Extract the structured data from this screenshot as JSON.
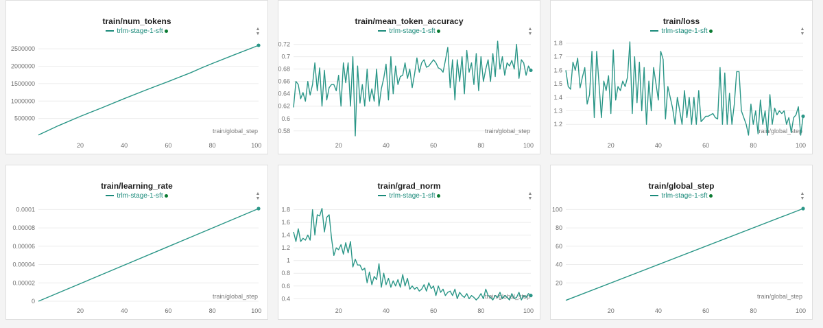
{
  "colors": {
    "line": "#2a9687",
    "legend_dot": "#0b7a32",
    "grid": "#ececec"
  },
  "charts": [
    {
      "id": "num-tokens",
      "title": "train/num_tokens",
      "legend": "trlm-stage-1-sft",
      "xlabel": "train/global_step",
      "x_ticks": [
        "20",
        "40",
        "60",
        "80",
        "100"
      ],
      "y_ticks": [
        "500000",
        "1000000",
        "1500000",
        "2000000",
        "2500000"
      ]
    },
    {
      "id": "mean-token-accuracy",
      "title": "train/mean_token_accuracy",
      "legend": "trlm-stage-1-sft",
      "xlabel": "train/global_step",
      "x_ticks": [
        "20",
        "40",
        "60",
        "80",
        "100"
      ],
      "y_ticks": [
        "0.58",
        "0.6",
        "0.62",
        "0.64",
        "0.66",
        "0.68",
        "0.7",
        "0.72"
      ]
    },
    {
      "id": "loss",
      "title": "train/loss",
      "legend": "trlm-stage-1-sft",
      "xlabel": "train/global_step",
      "x_ticks": [
        "20",
        "40",
        "60",
        "80",
        "100"
      ],
      "y_ticks": [
        "1.2",
        "1.3",
        "1.4",
        "1.5",
        "1.6",
        "1.7",
        "1.8"
      ]
    },
    {
      "id": "learning-rate",
      "title": "train/learning_rate",
      "legend": "trlm-stage-1-sft",
      "xlabel": "train/global_step",
      "x_ticks": [
        "20",
        "40",
        "60",
        "80",
        "100"
      ],
      "y_ticks": [
        "0",
        "0.00002",
        "0.00004",
        "0.00006",
        "0.00008",
        "0.0001"
      ]
    },
    {
      "id": "grad-norm",
      "title": "train/grad_norm",
      "legend": "trlm-stage-1-sft",
      "xlabel": "train/global_step",
      "x_ticks": [
        "20",
        "40",
        "60",
        "80",
        "100"
      ],
      "y_ticks": [
        "0.4",
        "0.6",
        "0.8",
        "1",
        "1.2",
        "1.4",
        "1.6",
        "1.8"
      ]
    },
    {
      "id": "global-step",
      "title": "train/global_step",
      "legend": "trlm-stage-1-sft",
      "xlabel": "train/global_step",
      "x_ticks": [
        "20",
        "40",
        "60",
        "80",
        "100"
      ],
      "y_ticks": [
        "20",
        "40",
        "60",
        "80",
        "100"
      ]
    }
  ],
  "chart_data": [
    {
      "type": "line",
      "title": "train/num_tokens",
      "xlabel": "train/global_step",
      "ylabel": "",
      "xlim": [
        1,
        101
      ],
      "ylim": [
        0,
        2700000
      ],
      "series": [
        {
          "name": "trlm-stage-1-sft",
          "x": [
            1,
            10,
            20,
            30,
            40,
            50,
            55,
            60,
            70,
            75,
            80,
            90,
            101
          ],
          "y": [
            25000,
            290000,
            560000,
            810000,
            1070000,
            1320000,
            1440000,
            1560000,
            1810000,
            1950000,
            2080000,
            2330000,
            2600000
          ]
        }
      ]
    },
    {
      "type": "line",
      "title": "train/mean_token_accuracy",
      "xlabel": "train/global_step",
      "ylabel": "",
      "xlim": [
        1,
        101
      ],
      "ylim": [
        0.572,
        0.724
      ],
      "series": [
        {
          "name": "trlm-stage-1-sft",
          "x": [
            1,
            2,
            3,
            4,
            5,
            6,
            7,
            8,
            9,
            10,
            11,
            12,
            13,
            14,
            15,
            16,
            17,
            18,
            19,
            20,
            21,
            22,
            23,
            24,
            25,
            26,
            27,
            28,
            29,
            30,
            31,
            32,
            33,
            34,
            35,
            36,
            37,
            38,
            39,
            40,
            41,
            42,
            43,
            44,
            45,
            46,
            47,
            48,
            49,
            50,
            51,
            52,
            53,
            54,
            55,
            56,
            57,
            58,
            59,
            60,
            61,
            62,
            63,
            64,
            65,
            66,
            67,
            68,
            69,
            70,
            71,
            72,
            73,
            74,
            75,
            76,
            77,
            78,
            79,
            80,
            81,
            82,
            83,
            84,
            85,
            86,
            87,
            88,
            89,
            90,
            91,
            92,
            93,
            94,
            95,
            96,
            97,
            98,
            99,
            100,
            101
          ],
          "y": [
            0.618,
            0.66,
            0.655,
            0.632,
            0.642,
            0.628,
            0.66,
            0.638,
            0.655,
            0.69,
            0.645,
            0.682,
            0.62,
            0.678,
            0.63,
            0.65,
            0.655,
            0.655,
            0.645,
            0.67,
            0.62,
            0.69,
            0.658,
            0.69,
            0.62,
            0.7,
            0.572,
            0.685,
            0.625,
            0.655,
            0.62,
            0.68,
            0.628,
            0.648,
            0.628,
            0.68,
            0.62,
            0.648,
            0.665,
            0.688,
            0.63,
            0.7,
            0.64,
            0.685,
            0.655,
            0.668,
            0.67,
            0.69,
            0.665,
            0.68,
            0.65,
            0.672,
            0.698,
            0.675,
            0.69,
            0.695,
            0.683,
            0.685,
            0.69,
            0.695,
            0.69,
            0.682,
            0.68,
            0.675,
            0.694,
            0.715,
            0.65,
            0.695,
            0.63,
            0.695,
            0.66,
            0.7,
            0.64,
            0.71,
            0.675,
            0.69,
            0.655,
            0.705,
            0.645,
            0.7,
            0.66,
            0.68,
            0.695,
            0.66,
            0.705,
            0.668,
            0.725,
            0.68,
            0.7,
            0.67,
            0.69,
            0.685,
            0.694,
            0.68,
            0.72,
            0.665,
            0.695,
            0.69,
            0.67,
            0.685,
            0.678
          ]
        }
      ]
    },
    {
      "type": "line",
      "title": "train/loss",
      "xlabel": "train/global_step",
      "ylabel": "",
      "xlim": [
        1,
        101
      ],
      "ylim": [
        1.115,
        1.81
      ],
      "series": [
        {
          "name": "trlm-stage-1-sft",
          "x": [
            1,
            2,
            3,
            4,
            5,
            6,
            7,
            8,
            9,
            10,
            11,
            12,
            13,
            14,
            15,
            16,
            17,
            18,
            19,
            20,
            21,
            22,
            23,
            24,
            25,
            26,
            27,
            28,
            29,
            30,
            31,
            32,
            33,
            34,
            35,
            36,
            37,
            38,
            39,
            40,
            41,
            42,
            43,
            44,
            45,
            46,
            47,
            48,
            49,
            50,
            51,
            52,
            53,
            54,
            55,
            56,
            57,
            58,
            59,
            60,
            61,
            62,
            63,
            64,
            65,
            66,
            67,
            68,
            69,
            70,
            71,
            72,
            73,
            74,
            75,
            76,
            77,
            78,
            79,
            80,
            81,
            82,
            83,
            84,
            85,
            86,
            87,
            88,
            89,
            90,
            91,
            92,
            93,
            94,
            95,
            96,
            97,
            98,
            99,
            100,
            101
          ],
          "y": [
            1.6,
            1.48,
            1.46,
            1.66,
            1.6,
            1.69,
            1.47,
            1.55,
            1.62,
            1.35,
            1.42,
            1.74,
            1.25,
            1.74,
            1.5,
            1.25,
            1.52,
            1.45,
            1.56,
            1.28,
            1.75,
            1.38,
            1.48,
            1.45,
            1.52,
            1.48,
            1.55,
            1.81,
            1.28,
            1.7,
            1.36,
            1.66,
            1.3,
            1.62,
            1.2,
            1.52,
            1.3,
            1.62,
            1.5,
            1.38,
            1.74,
            1.68,
            1.24,
            1.48,
            1.4,
            1.32,
            1.2,
            1.4,
            1.3,
            1.2,
            1.45,
            1.25,
            1.4,
            1.2,
            1.4,
            1.2,
            1.45,
            1.22,
            1.24,
            1.26,
            1.26,
            1.27,
            1.28,
            1.25,
            1.24,
            1.62,
            1.2,
            1.58,
            1.2,
            1.43,
            1.2,
            1.35,
            1.59,
            1.59,
            1.3,
            1.25,
            1.2,
            1.12,
            1.35,
            1.2,
            1.3,
            1.13,
            1.38,
            1.2,
            1.3,
            1.12,
            1.42,
            1.2,
            1.32,
            1.27,
            1.3,
            1.28,
            1.3,
            1.2,
            1.25,
            1.14,
            1.25,
            1.27,
            1.33,
            1.12,
            1.26
          ]
        }
      ]
    },
    {
      "type": "line",
      "title": "train/learning_rate",
      "xlabel": "train/global_step",
      "ylabel": "",
      "xlim": [
        1,
        101
      ],
      "ylim": [
        0,
        0.000104
      ],
      "series": [
        {
          "name": "trlm-stage-1-sft",
          "x": [
            1,
            101
          ],
          "y": [
            0,
            0.000101
          ]
        }
      ]
    },
    {
      "type": "line",
      "title": "train/grad_norm",
      "xlabel": "train/global_step",
      "ylabel": "",
      "xlim": [
        1,
        101
      ],
      "ylim": [
        0.36,
        1.86
      ],
      "series": [
        {
          "name": "trlm-stage-1-sft",
          "x": [
            1,
            2,
            3,
            4,
            5,
            6,
            7,
            8,
            9,
            10,
            11,
            12,
            13,
            14,
            15,
            16,
            17,
            18,
            19,
            20,
            21,
            22,
            23,
            24,
            25,
            26,
            27,
            28,
            29,
            30,
            31,
            32,
            33,
            34,
            35,
            36,
            37,
            38,
            39,
            40,
            41,
            42,
            43,
            44,
            45,
            46,
            47,
            48,
            49,
            50,
            51,
            52,
            53,
            54,
            55,
            56,
            57,
            58,
            59,
            60,
            61,
            62,
            63,
            64,
            65,
            66,
            67,
            68,
            69,
            70,
            71,
            72,
            73,
            74,
            75,
            76,
            77,
            78,
            79,
            80,
            81,
            82,
            83,
            84,
            85,
            86,
            87,
            88,
            89,
            90,
            91,
            92,
            93,
            94,
            95,
            96,
            97,
            98,
            99,
            100,
            101
          ],
          "y": [
            1.45,
            1.3,
            1.5,
            1.3,
            1.35,
            1.32,
            1.4,
            1.32,
            1.8,
            1.4,
            1.72,
            1.7,
            1.82,
            1.45,
            1.68,
            1.72,
            1.35,
            1.08,
            1.2,
            1.17,
            1.25,
            1.1,
            1.28,
            1.12,
            1.3,
            0.9,
            1.02,
            0.93,
            0.93,
            0.85,
            0.88,
            0.65,
            0.82,
            0.62,
            0.75,
            0.7,
            0.95,
            0.58,
            0.8,
            0.62,
            0.72,
            0.58,
            0.68,
            0.6,
            0.7,
            0.58,
            0.78,
            0.6,
            0.72,
            0.55,
            0.6,
            0.55,
            0.58,
            0.52,
            0.55,
            0.62,
            0.52,
            0.65,
            0.56,
            0.6,
            0.45,
            0.6,
            0.5,
            0.55,
            0.45,
            0.5,
            0.52,
            0.45,
            0.55,
            0.4,
            0.5,
            0.45,
            0.42,
            0.48,
            0.4,
            0.45,
            0.42,
            0.38,
            0.42,
            0.48,
            0.4,
            0.55,
            0.45,
            0.42,
            0.38,
            0.45,
            0.42,
            0.5,
            0.4,
            0.45,
            0.42,
            0.38,
            0.48,
            0.4,
            0.42,
            0.5,
            0.38,
            0.45,
            0.42,
            0.48,
            0.45
          ]
        }
      ]
    },
    {
      "type": "line",
      "title": "train/global_step",
      "xlabel": "train/global_step",
      "ylabel": "",
      "xlim": [
        1,
        101
      ],
      "ylim": [
        0,
        104
      ],
      "series": [
        {
          "name": "trlm-stage-1-sft",
          "x": [
            1,
            101
          ],
          "y": [
            1,
            101
          ]
        }
      ]
    }
  ]
}
